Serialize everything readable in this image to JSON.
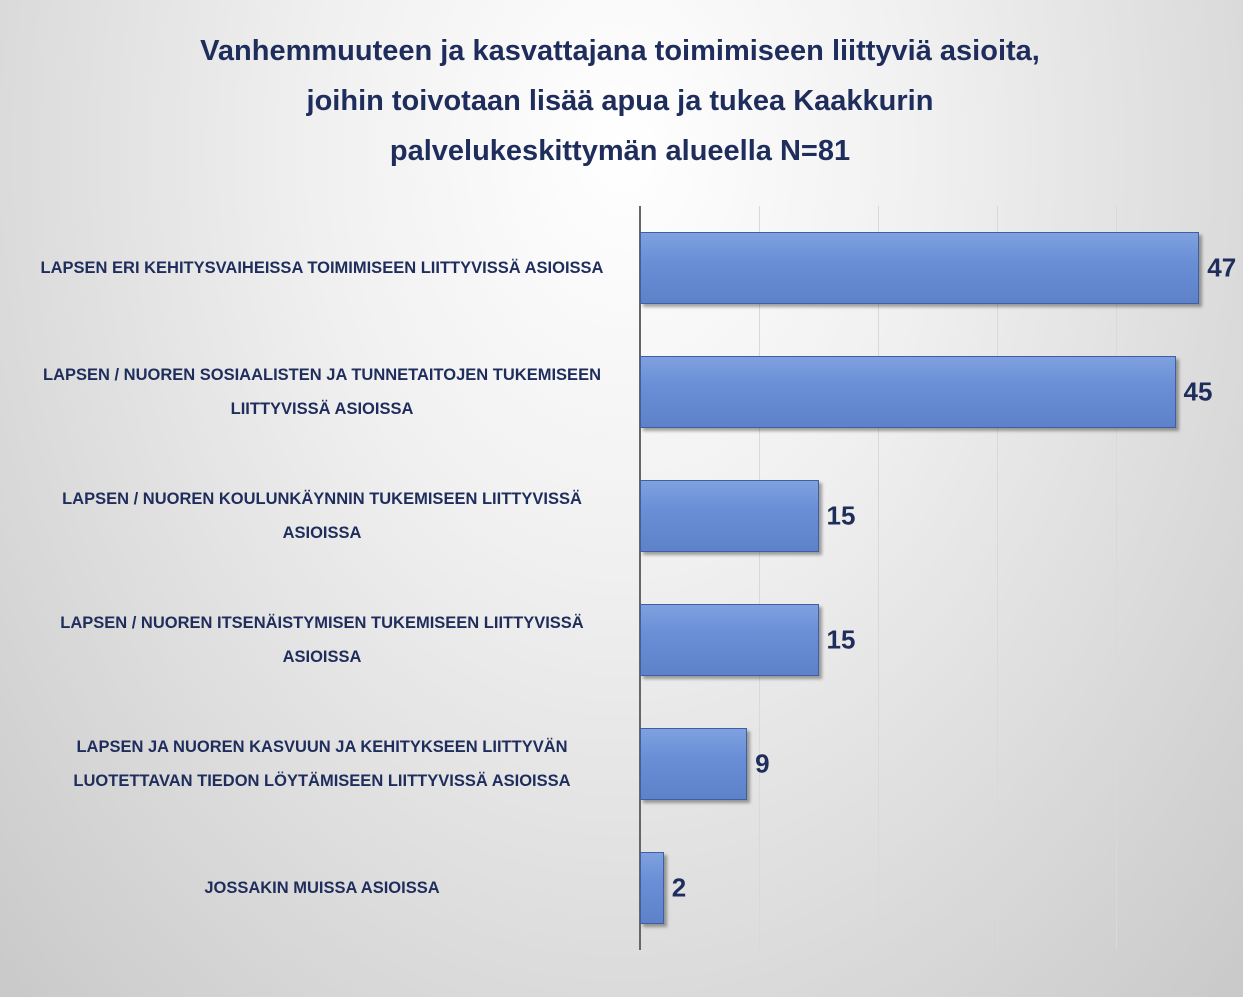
{
  "chart_data": {
    "type": "bar",
    "orientation": "horizontal",
    "title": "Vanhemmuuteen ja kasvattajana toimimiseen liittyviä asioita, joihin toivotaan lisää apua ja tukea Kaakkurin palvelukeskittymän alueella N=81",
    "categories": [
      "LAPSEN ERI KEHITYSVAIHEISSA TOIMIMISEEN LIITTYVISSÄ ASIOISSA",
      "LAPSEN / NUOREN SOSIAALISTEN JA TUNNETAITOJEN TUKEMISEEN LIITTYVISSÄ ASIOISSA",
      "LAPSEN / NUOREN KOULUNKÄYNNIN TUKEMISEEN LIITTYVISSÄ ASIOISSA",
      "LAPSEN / NUOREN ITSENÄISTYMISEN TUKEMISEEN LIITTYVISSÄ ASIOISSA",
      "LAPSEN JA NUOREN KASVUUN JA KEHITYKSEEN LIITTYVÄN LUOTETTAVAN TIEDON LÖYTÄMISEEN LIITTYVISSÄ ASIOISSA",
      "JOSSAKIN MUISSA ASIOISSA"
    ],
    "values": [
      47,
      45,
      15,
      15,
      9,
      2
    ],
    "color": "#6a8fd6",
    "xlim": [
      0,
      50
    ],
    "xticks": [
      0,
      10,
      20,
      30,
      40
    ],
    "grid": true
  }
}
